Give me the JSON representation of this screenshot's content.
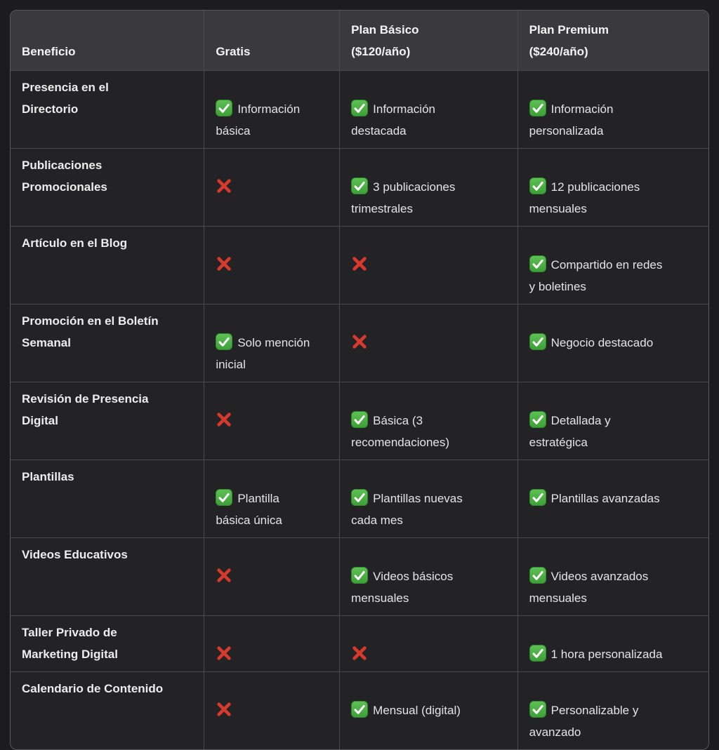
{
  "colors": {
    "page_background": "#1c1c1e",
    "header_background": "#3a3a3c",
    "cell_background": "#232325",
    "border": "#49494c",
    "check_green_top": "#5ec154",
    "check_green_bottom": "#3d9f37",
    "cross_red": "#d73a2d"
  },
  "table": {
    "columns": [
      "Beneficio",
      "Gratis",
      "Plan Básico\n($120/año)",
      "Plan Premium\n($240/año)"
    ],
    "rows": [
      {
        "benefit": "Presencia en el\nDirectorio",
        "gratis": {
          "icon": "check",
          "text": "Información\nbásica"
        },
        "basico": {
          "icon": "check",
          "text": "Información\ndestacada"
        },
        "premium": {
          "icon": "check",
          "text": "Información\npersonalizada"
        }
      },
      {
        "benefit": "Publicaciones\nPromocionales",
        "gratis": {
          "icon": "cross",
          "text": ""
        },
        "basico": {
          "icon": "check",
          "text": "3 publicaciones\ntrimestrales"
        },
        "premium": {
          "icon": "check",
          "text": "12 publicaciones\nmensuales"
        }
      },
      {
        "benefit": "Artículo en el Blog",
        "gratis": {
          "icon": "cross",
          "text": ""
        },
        "basico": {
          "icon": "cross",
          "text": ""
        },
        "premium": {
          "icon": "check",
          "text": "Compartido en redes\ny boletines"
        }
      },
      {
        "benefit": "Promoción en el Boletín\nSemanal",
        "gratis": {
          "icon": "check",
          "text": "Solo mención\ninicial"
        },
        "basico": {
          "icon": "cross",
          "text": ""
        },
        "premium": {
          "icon": "check",
          "text": "Negocio destacado"
        }
      },
      {
        "benefit": "Revisión de Presencia\nDigital",
        "gratis": {
          "icon": "cross",
          "text": ""
        },
        "basico": {
          "icon": "check",
          "text": "Básica (3\nrecomendaciones)"
        },
        "premium": {
          "icon": "check",
          "text": "Detallada y\nestratégica"
        }
      },
      {
        "benefit": "Plantillas",
        "gratis": {
          "icon": "check",
          "text": "Plantilla\nbásica única"
        },
        "basico": {
          "icon": "check",
          "text": "Plantillas nuevas\ncada mes"
        },
        "premium": {
          "icon": "check",
          "text": "Plantillas avanzadas"
        }
      },
      {
        "benefit": "Videos Educativos",
        "gratis": {
          "icon": "cross",
          "text": ""
        },
        "basico": {
          "icon": "check",
          "text": "Videos básicos\nmensuales"
        },
        "premium": {
          "icon": "check",
          "text": "Videos avanzados\nmensuales"
        }
      },
      {
        "benefit": "Taller Privado de\nMarketing Digital",
        "gratis": {
          "icon": "cross",
          "text": ""
        },
        "basico": {
          "icon": "cross",
          "text": ""
        },
        "premium": {
          "icon": "check",
          "text": "1 hora personalizada"
        }
      },
      {
        "benefit": "Calendario de Contenido",
        "gratis": {
          "icon": "cross",
          "text": ""
        },
        "basico": {
          "icon": "check",
          "text": "Mensual (digital)"
        },
        "premium": {
          "icon": "check",
          "text": "Personalizable y\navanzado"
        }
      }
    ]
  }
}
